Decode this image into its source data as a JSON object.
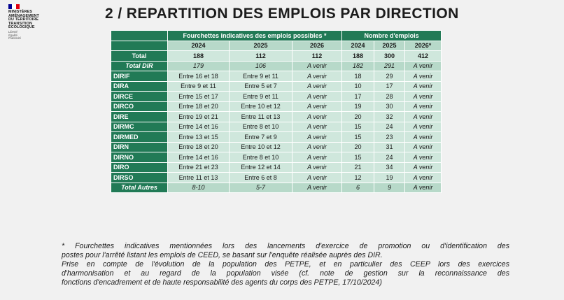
{
  "logo": {
    "lines": [
      "MINISTÈRES",
      "AMÉNAGEMENT",
      "DU TERRITOIRE",
      "TRANSITION",
      "ÉCOLOGIQUE"
    ],
    "motto": [
      "Liberté",
      "Égalité",
      "Fraternité"
    ],
    "flag_colors": [
      "#000091",
      "#ffffff",
      "#e1000f"
    ]
  },
  "title": "2 / REPARTITION DES EMPLOIS PAR DIRECTION",
  "table": {
    "group_headers": {
      "range": "Fourchettes indicatives des emplois possibles *",
      "count": "Nombre d'emplois"
    },
    "years": [
      "2024",
      "2025",
      "2026",
      "2024",
      "2025",
      "2026*"
    ],
    "total": {
      "label": "Total",
      "values": [
        "188",
        "112",
        "112",
        "188",
        "300",
        "412"
      ]
    },
    "total_dir": {
      "label": "Total DIR",
      "values": [
        "179",
        "106",
        "A venir",
        "182",
        "291",
        "A venir"
      ]
    },
    "rows": [
      {
        "label": "DIRIF",
        "values": [
          "Entre 16 et 18",
          "Entre 9 et 11",
          "A venir",
          "18",
          "29",
          "A venir"
        ]
      },
      {
        "label": "DIRA",
        "values": [
          "Entre 9 et 11",
          "Entre 5 et 7",
          "A venir",
          "10",
          "17",
          "A venir"
        ]
      },
      {
        "label": "DIRCE",
        "values": [
          "Entre 15 et 17",
          "Entre 9 et 11",
          "A venir",
          "17",
          "28",
          "A venir"
        ]
      },
      {
        "label": "DIRCO",
        "values": [
          "Entre 18 et 20",
          "Entre 10 et 12",
          "A venir",
          "19",
          "30",
          "A venir"
        ]
      },
      {
        "label": "DIRE",
        "values": [
          "Entre 19 et 21",
          "Entre 11 et 13",
          "A venir",
          "20",
          "32",
          "A venir"
        ]
      },
      {
        "label": "DIRMC",
        "values": [
          "Entre 14 et 16",
          "Entre 8 et 10",
          "A venir",
          "15",
          "24",
          "A venir"
        ]
      },
      {
        "label": "DIRMED",
        "values": [
          "Entre 13 et 15",
          "Entre 7 et 9",
          "A venir",
          "15",
          "23",
          "A venir"
        ]
      },
      {
        "label": "DIRN",
        "values": [
          "Entre 18 et 20",
          "Entre 10 et 12",
          "A venir",
          "20",
          "31",
          "A venir"
        ]
      },
      {
        "label": "DIRNO",
        "values": [
          "Entre 14 et 16",
          "Entre 8 et 10",
          "A venir",
          "15",
          "24",
          "A venir"
        ]
      },
      {
        "label": "DIRO",
        "values": [
          "Entre 21 et 23",
          "Entre 12 et 14",
          "A venir",
          "21",
          "34",
          "A venir"
        ]
      },
      {
        "label": "DIRSO",
        "values": [
          "Entre 11 et 13",
          "Entre 6 et 8",
          "A venir",
          "12",
          "19",
          "A venir"
        ]
      }
    ],
    "total_autres": {
      "label": "Total Autres",
      "values": [
        "8-10",
        "5-7",
        "A venir",
        "6",
        "9",
        "A venir"
      ]
    }
  },
  "notes": {
    "footnote_line1": "* Fourchettes indicatives mentionnées lors des lancements d'exercice de promotion ou d'identification des",
    "footnote_line2": "postes pour l'arrêté listant les emplois de CEED, se basant sur l'enquête réalisée auprès des DIR.",
    "context_line1": "Prise en compte de l'évolution de la population des PETPE, et en particulier des CEEP lors des exercices",
    "context_line2": "d'harmonisation et au regard de la population visée (cf. note de gestion sur la reconnaissance des",
    "context_line3": "fonctions d'encadrement et de haute responsabilité des agents du corps des PETPE, 17/10/2024)"
  }
}
